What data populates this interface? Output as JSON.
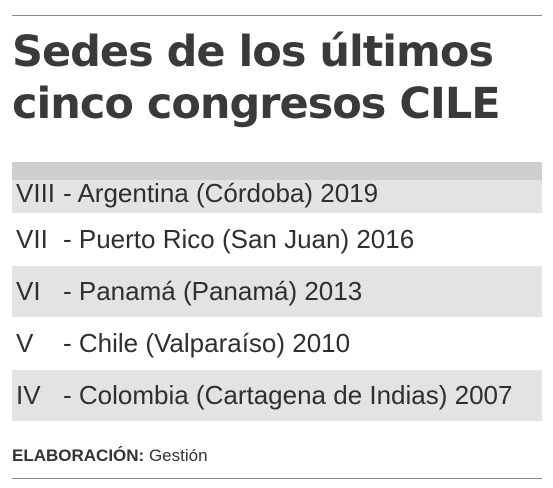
{
  "title": {
    "line1": "Sedes de los últimos",
    "line2": "cinco congresos CILE"
  },
  "rows": [
    {
      "numeral": "VIII",
      "text": "- Argentina (Córdoba) 2019"
    },
    {
      "numeral": "VII",
      "text": "- Puerto Rico (San Juan) 2016"
    },
    {
      "numeral": "VI",
      "text": "- Panamá (Panamá) 2013"
    },
    {
      "numeral": "V",
      "text": "- Chile (Valparaíso) 2010"
    },
    {
      "numeral": "IV",
      "text": "- Colombia (Cartagena de Indias) 2007"
    }
  ],
  "footer": {
    "label": "ELABORACIÓN:",
    "source": "Gestión"
  },
  "colors": {
    "row_shade": "#e3e3e3",
    "text": "#2f2f2f"
  }
}
